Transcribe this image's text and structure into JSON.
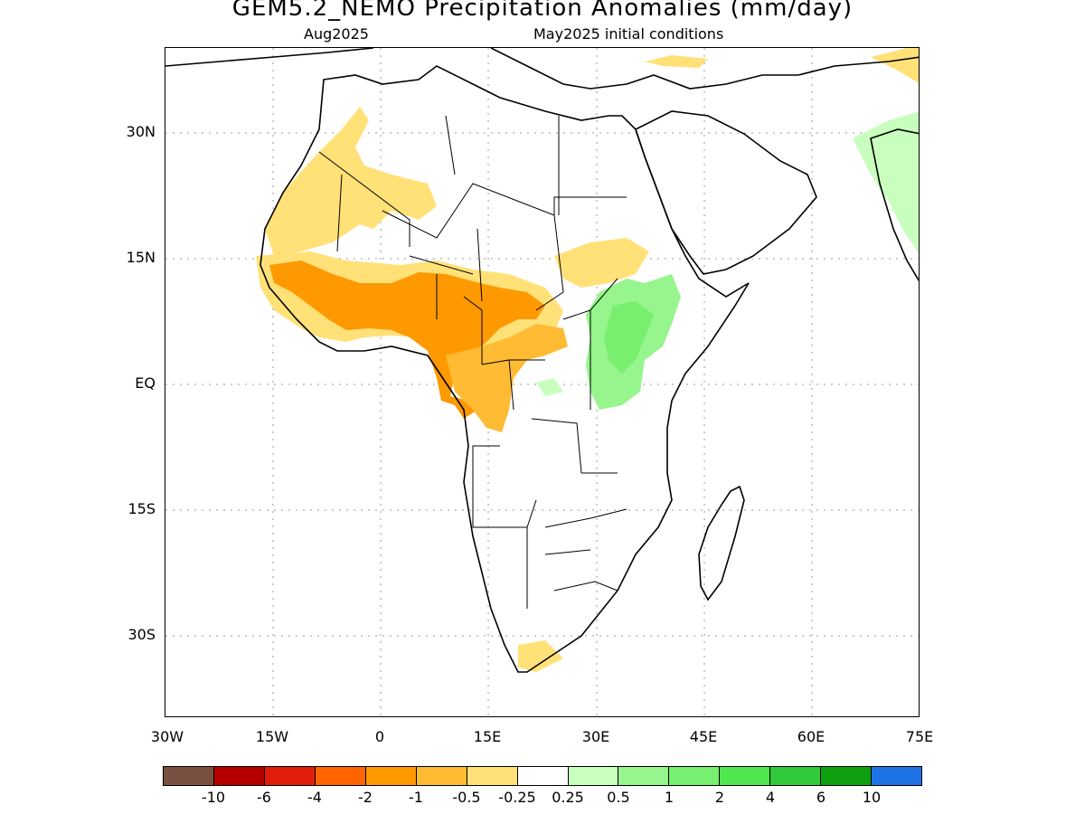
{
  "title": "GEM5.2_NEMO Precipitation Anomalies (mm/day)",
  "subtitle_left": "Aug2025",
  "subtitle_right": "May2025 initial conditions",
  "y_axis_labels": [
    "30N",
    "15N",
    "EQ",
    "15S",
    "30S"
  ],
  "x_axis_labels": [
    "30W",
    "15W",
    "0",
    "15E",
    "30E",
    "45E",
    "60E",
    "75E"
  ],
  "colorbar": {
    "colors": [
      "#7a5040",
      "#b40000",
      "#e01e0a",
      "#ff6400",
      "#ff9900",
      "#ffbb33",
      "#ffe178",
      "#ffffff",
      "#c8ffbe",
      "#96f58c",
      "#78ef6e",
      "#50e650",
      "#32c83c",
      "#0fa00f",
      "#2073e6"
    ],
    "labels": [
      "-10",
      "-6",
      "-4",
      "-2",
      "-1",
      "-0.5",
      "-0.25",
      "0.25",
      "0.5",
      "1",
      "2",
      "4",
      "6",
      "10"
    ]
  },
  "map": {
    "lon_range": [
      -30,
      75
    ],
    "lat_range": [
      -40,
      40
    ],
    "projection": "equirectangular",
    "gridlines": "dotted",
    "anomaly_regions": [
      {
        "region": "Sahel / West Africa",
        "category": "-1"
      },
      {
        "region": "Central African Republic / Cameroon / Gabon",
        "category": "-1"
      },
      {
        "region": "Northwest Africa / Morocco",
        "category": "-0.25"
      },
      {
        "region": "Sudan / Chad",
        "category": "-0.25"
      },
      {
        "region": "Southwestern South Africa",
        "category": "-0.25"
      },
      {
        "region": "Ethiopia / Uganda / Lake Victoria",
        "category": "0.5"
      },
      {
        "region": "Western India",
        "category": "0.25"
      }
    ]
  }
}
